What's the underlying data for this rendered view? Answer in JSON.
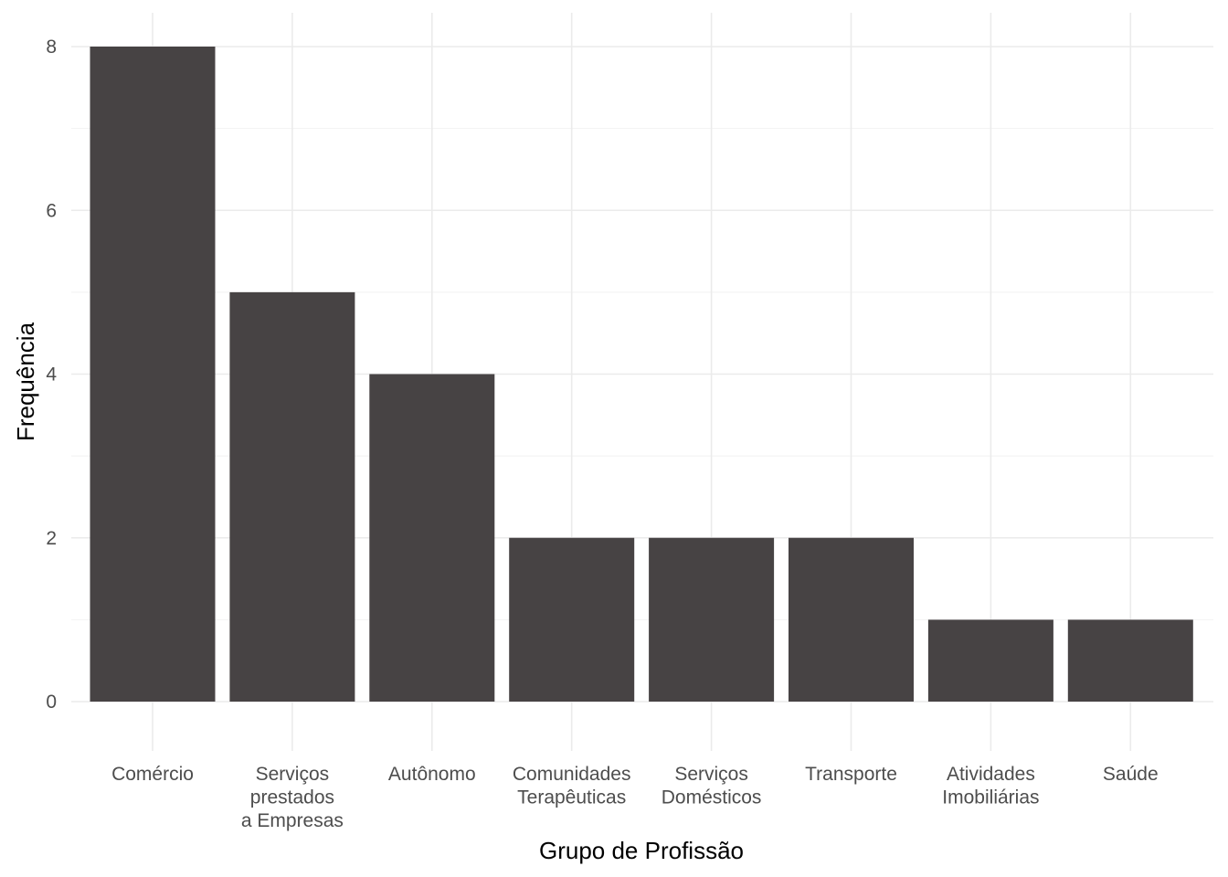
{
  "chart_data": {
    "type": "bar",
    "categories": [
      [
        "Comércio"
      ],
      [
        "Serviços",
        "prestados",
        "a Empresas"
      ],
      [
        "Autônomo"
      ],
      [
        "Comunidades",
        "Terapêuticas"
      ],
      [
        "Serviços",
        "Domésticos"
      ],
      [
        "Transporte"
      ],
      [
        "Atividades",
        "Imobiliárias"
      ],
      [
        "Saúde"
      ]
    ],
    "values": [
      8,
      5,
      4,
      2,
      2,
      2,
      1,
      1
    ],
    "xlabel": "Grupo de Profissão",
    "ylabel": "Frequência",
    "ylim": [
      0,
      8
    ],
    "yticks": [
      0,
      2,
      4,
      6,
      8
    ],
    "grid": true,
    "bar_color": "#474344"
  }
}
